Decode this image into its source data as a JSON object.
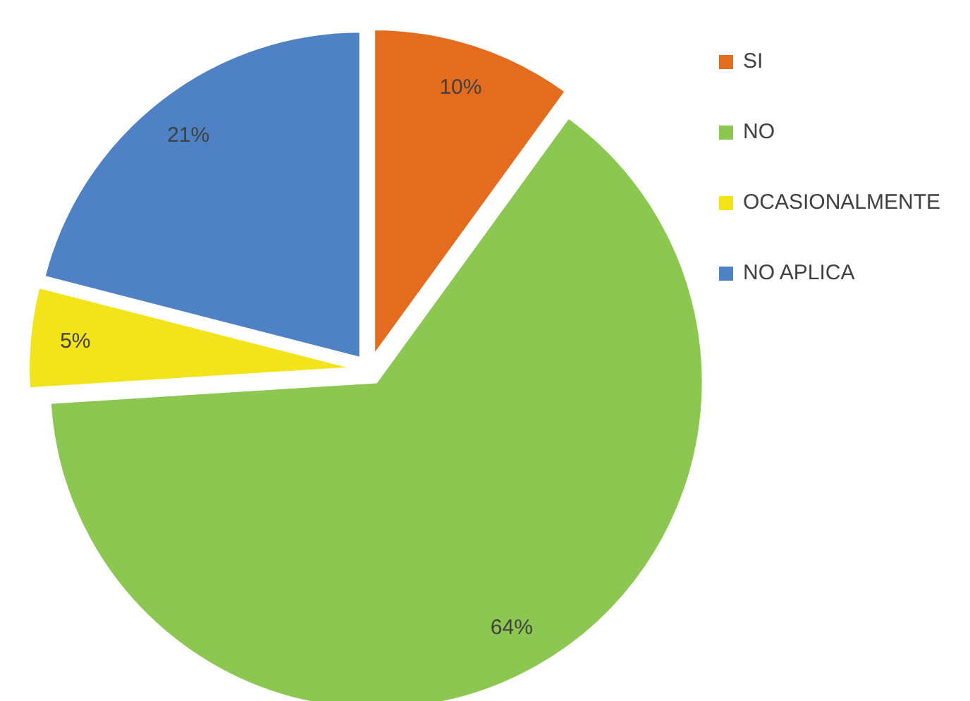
{
  "chart_data": {
    "type": "pie",
    "categories": [
      "SI",
      "NO",
      "OCASIONALMENTE",
      "NO APLICA"
    ],
    "values": [
      10,
      64,
      5,
      21
    ],
    "colors": [
      "#e46c1f",
      "#8cc751",
      "#f2e31b",
      "#4f81c5"
    ],
    "value_labels": [
      "10%",
      "64%",
      "5%",
      "21%"
    ],
    "legend": "right"
  }
}
